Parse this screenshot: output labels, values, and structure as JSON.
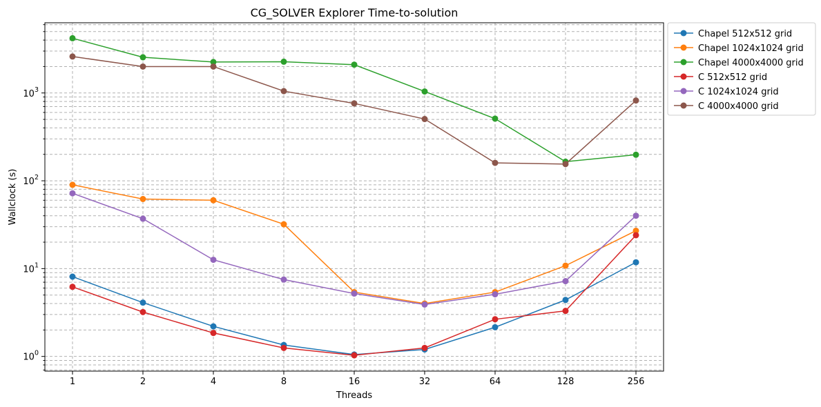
{
  "chart_data": {
    "type": "line",
    "title": "CG_SOLVER Explorer Time-to-solution",
    "xlabel": "Threads",
    "ylabel": "Wallclock (s)",
    "yscale": "log",
    "ylim": [
      0.68,
      6300
    ],
    "grid": true,
    "legend_position": "outside-top-right",
    "x": [
      1,
      2,
      4,
      8,
      16,
      32,
      64,
      128,
      256
    ],
    "x_tick_labels": [
      "1",
      "2",
      "4",
      "8",
      "16",
      "32",
      "64",
      "128",
      "256"
    ],
    "y_tick_labels": [
      {
        "value": 1,
        "base": "10",
        "exp": "0"
      },
      {
        "value": 10,
        "base": "10",
        "exp": "1"
      },
      {
        "value": 100,
        "base": "10",
        "exp": "2"
      },
      {
        "value": 1000,
        "base": "10",
        "exp": "3"
      }
    ],
    "series": [
      {
        "name": "Chapel 512x512 grid",
        "color": "#1f77b4",
        "values": [
          8.1,
          4.1,
          2.2,
          1.35,
          1.05,
          1.2,
          2.15,
          4.4,
          11.8
        ]
      },
      {
        "name": "Chapel 1024x1024 grid",
        "color": "#ff7f0e",
        "values": [
          90,
          62,
          60,
          32,
          5.4,
          4.0,
          5.4,
          10.8,
          27
        ]
      },
      {
        "name": "Chapel 4000x4000 grid",
        "color": "#2ca02c",
        "values": [
          4200,
          2550,
          2250,
          2270,
          2100,
          1040,
          510,
          165,
          198
        ]
      },
      {
        "name": "C 512x512 grid",
        "color": "#d62728",
        "values": [
          6.2,
          3.2,
          1.85,
          1.25,
          1.03,
          1.25,
          2.65,
          3.3,
          24
        ]
      },
      {
        "name": "C 1024x1024 grid",
        "color": "#9467bd",
        "values": [
          72,
          37,
          12.6,
          7.5,
          5.2,
          3.9,
          5.1,
          7.2,
          40
        ]
      },
      {
        "name": "C 4000x4000 grid",
        "color": "#8c564b",
        "values": [
          2600,
          2000,
          2000,
          1050,
          760,
          505,
          160,
          155,
          820
        ]
      }
    ]
  }
}
